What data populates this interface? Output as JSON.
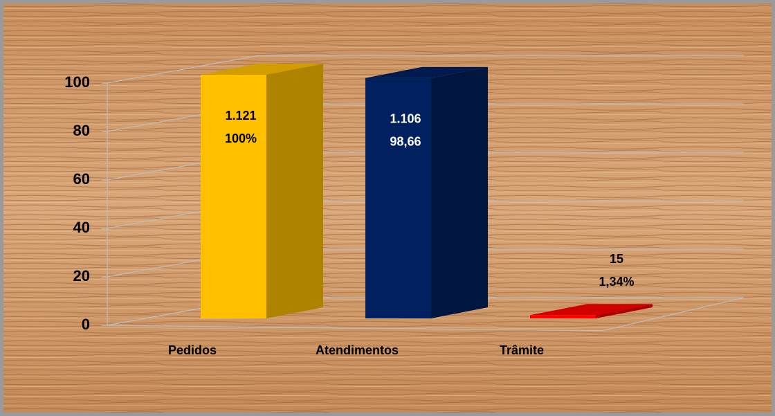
{
  "chart_data": {
    "type": "bar3d",
    "categories": [
      "Pedidos",
      "Atendimentos",
      "Trâmite"
    ],
    "values": [
      100,
      98.66,
      1.34
    ],
    "value_labels": [
      "100%",
      "98,66",
      "1,34%"
    ],
    "count_labels": [
      "1.121",
      "1.106",
      "15"
    ],
    "colors": [
      "#ffc000",
      "#002060",
      "#ff0000"
    ],
    "label_colors": [
      "#000000",
      "#ffffff",
      "#000000"
    ],
    "ylim": [
      0,
      100
    ],
    "yticks": [
      0,
      20,
      40,
      60,
      80,
      100
    ],
    "grid": true
  }
}
